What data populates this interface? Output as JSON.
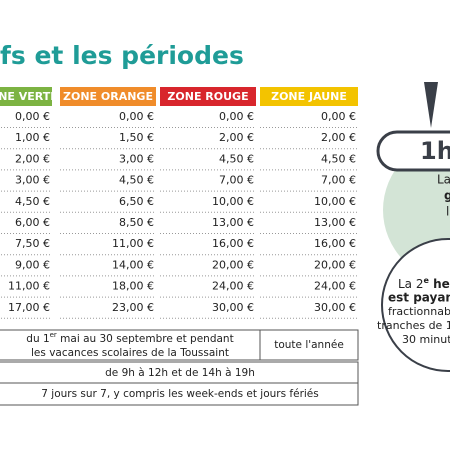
{
  "title": "fs et les périodes",
  "table": {
    "headers": [
      "NE VERTE",
      "ZONE ORANGE",
      "ZONE ROUGE",
      "ZONE JAUNE"
    ],
    "rows": [
      [
        "0,00 €",
        "0,00 €",
        "0,00 €",
        "0,00 €"
      ],
      [
        "1,00 €",
        "1,50 €",
        "2,00 €",
        "2,00 €"
      ],
      [
        "2,00 €",
        "3,00 €",
        "4,50 €",
        "4,50 €"
      ],
      [
        "3,00 €",
        "4,50 €",
        "7,00 €",
        "7,00 €"
      ],
      [
        "4,50 €",
        "6,50 €",
        "10,00 €",
        "10,00 €"
      ],
      [
        "6,00 €",
        "8,50 €",
        "13,00 €",
        "13,00 €"
      ],
      [
        "7,50 €",
        "11,00 €",
        "16,00 €",
        "16,00 €"
      ],
      [
        "9,00 €",
        "14,00 €",
        "20,00 €",
        "20,00 €"
      ],
      [
        "11,00 €",
        "18,00 €",
        "24,00 €",
        "24,00 €"
      ],
      [
        "17,00 €",
        "23,00 €",
        "30,00 €",
        "30,00 €"
      ]
    ]
  },
  "periods": {
    "seasonal": {
      "line1_start": "du 1",
      "line1_sup": "er",
      "line1_end": " mai au 30 septembre et pendant",
      "line2": "les vacances scolaires de la Toussaint"
    },
    "all_year": "toute l'année",
    "hours": "de 9h à 12h et de 14h à 19h",
    "days": "7 jours sur 7, y compris les week-ends et jours fériés"
  },
  "side": {
    "badge": "1h",
    "green_lines": [
      "La",
      "g",
      "l"
    ],
    "white_line1_start": "La 2",
    "white_line1_sup": "e",
    "white_line1_end": " heu",
    "white_line2": "est payan",
    "white_lines": [
      "fractionnab",
      "tranches de 1",
      "30 minut"
    ]
  }
}
